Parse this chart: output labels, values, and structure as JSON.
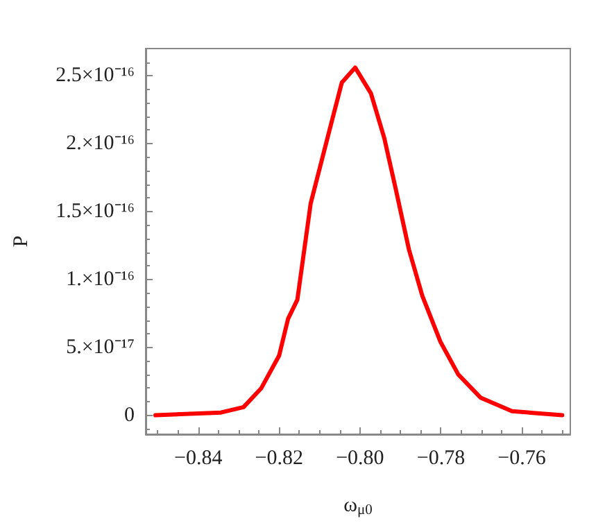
{
  "chart_data": {
    "type": "line",
    "xlabel": "ω$_{μ0}$",
    "ylabel": "P",
    "x": [
      -0.8506,
      -0.8344,
      -0.8288,
      -0.8244,
      -0.82,
      -0.8178,
      -0.8155,
      -0.8122,
      -0.8072,
      -0.8045,
      -0.8012,
      -0.7973,
      -0.794,
      -0.7912,
      -0.7879,
      -0.7846,
      -0.7801,
      -0.7757,
      -0.7702,
      -0.7624,
      -0.75
    ],
    "series": [
      {
        "color": "#ff0000",
        "values": [
          0,
          2e-18,
          6e-18,
          2e-17,
          4.4e-17,
          7.1e-17,
          8.5e-17,
          1.56e-16,
          2.14e-16,
          2.45e-16,
          2.56e-16,
          2.37e-16,
          2.04e-16,
          1.67e-16,
          1.22e-16,
          8.8e-17,
          5.4e-17,
          3e-17,
          1.3e-17,
          3e-18,
          0
        ]
      }
    ],
    "xlim": [
      -0.853,
      -0.748
    ],
    "ylim": [
      -1.4e-17,
      2.7e-16
    ],
    "xticks": [
      {
        "value": -0.84,
        "label": "−0.84"
      },
      {
        "value": -0.82,
        "label": "−0.82"
      },
      {
        "value": -0.8,
        "label": "−0.80"
      },
      {
        "value": -0.78,
        "label": "−0.78"
      },
      {
        "value": -0.76,
        "label": "−0.76"
      }
    ],
    "yticks": [
      0,
      {
        "value": 5e-17,
        "label": "5.×10⁻¹⁷"
      },
      {
        "value": 1e-16,
        "label": "1.×10⁻¹⁶"
      },
      {
        "value": 1.5e-16,
        "label": "1.5×10⁻¹⁶"
      },
      {
        "value": 2e-16,
        "label": "2.×10⁻¹⁶"
      },
      {
        "value": 2.5e-16,
        "label": "2.5×10⁻¹⁶"
      }
    ],
    "grid": false,
    "marker": "none",
    "line_style": "solid"
  }
}
